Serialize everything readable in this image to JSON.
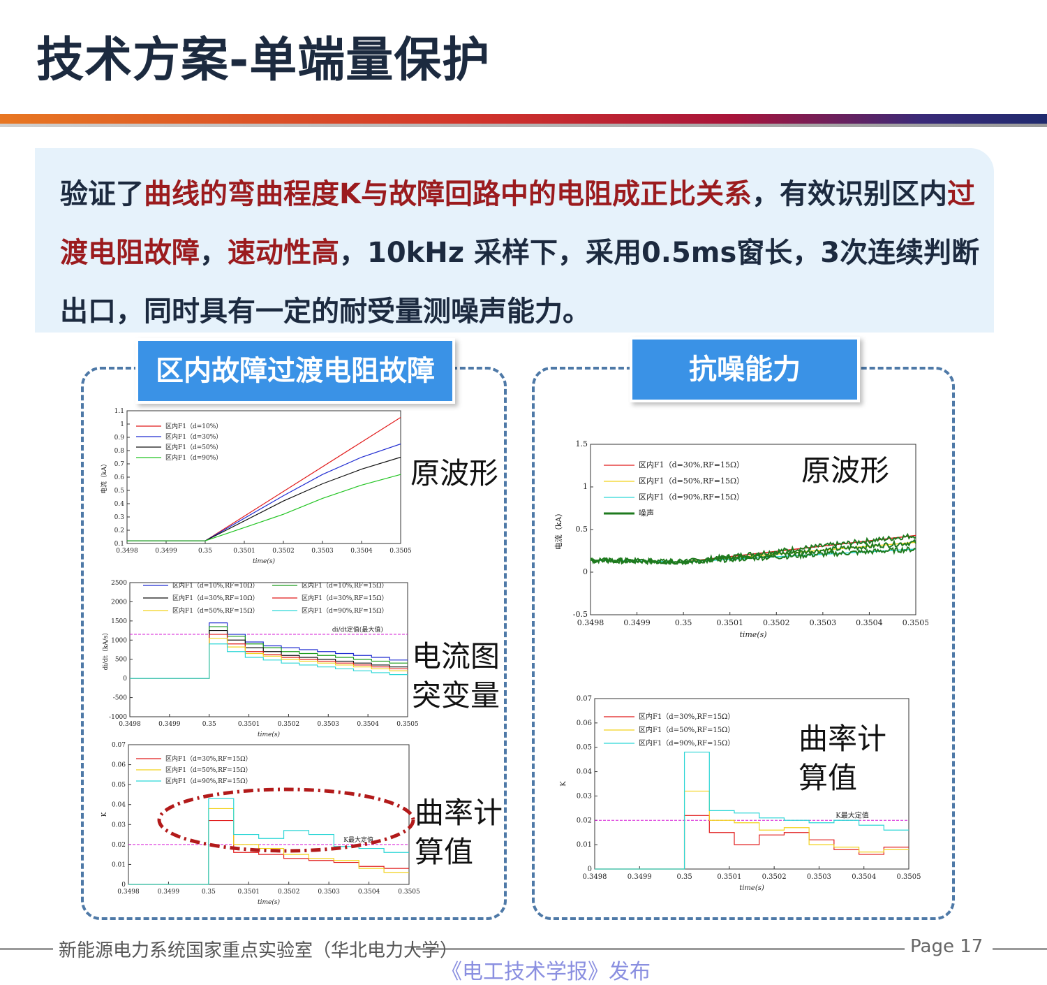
{
  "title": "技术方案-单端量保护",
  "summary": {
    "p1": "验证了",
    "p2": "曲线的弯曲程度K与故障回路中的电阻成正比关系",
    "p3": "，有效识别区内",
    "p4": "过渡电阻故障",
    "p5": "，",
    "p6": "速动性高",
    "p7": "，10kHz  采样下，采用0.5ms窗长，3次连续判断出口，同时具有一定的耐受量测噪声能力。"
  },
  "left_panel": {
    "label": "区内故障过渡电阻故障",
    "side1": "原波形",
    "side2a": "电流图",
    "side2b": "突变量",
    "side3a": "曲率计",
    "side3b": "算值"
  },
  "right_panel": {
    "label": "抗噪能力",
    "side1": "原波形",
    "side2a": "曲率计",
    "side2b": "算值"
  },
  "footer": {
    "org": "新能源电力系统国家重点实验室（华北电力大学）",
    "page": "Page 17",
    "publisher": "《电工技术学报》发布"
  },
  "colors": {
    "accent_red": "#9b1b1e",
    "panel_blue": "#3a92e6",
    "dashed_border": "#4e79a7"
  },
  "chart_data": [
    {
      "type": "line",
      "xlabel": "time(s)",
      "ylabel": "电流（kA）",
      "xlim": [
        0.3498,
        0.3505
      ],
      "ylim": [
        0.1,
        1.1
      ],
      "xticks": [
        "0.3498",
        "0.3499",
        "0.35",
        "0.3501",
        "0.3502",
        "0.3503",
        "0.3504",
        "0.3505"
      ],
      "yticks": [
        "0.1",
        "0.2",
        "0.3",
        "0.4",
        "0.5",
        "0.6",
        "0.7",
        "0.8",
        "0.9",
        "1",
        "1.1"
      ],
      "series": [
        {
          "name": "区内F1（d=10%）",
          "color": "#e11b1b",
          "x": [
            0.3498,
            0.35,
            0.3505
          ],
          "y": [
            0.12,
            0.12,
            1.05
          ]
        },
        {
          "name": "区内F1（d=30%）",
          "color": "#1f2bd1",
          "x": [
            0.3498,
            0.35,
            0.3502,
            0.3503,
            0.3504,
            0.3505
          ],
          "y": [
            0.12,
            0.12,
            0.46,
            0.62,
            0.75,
            0.85
          ]
        },
        {
          "name": "区内F1（d=50%）",
          "color": "#111111",
          "x": [
            0.3498,
            0.35,
            0.3502,
            0.3503,
            0.3504,
            0.3505
          ],
          "y": [
            0.12,
            0.12,
            0.42,
            0.55,
            0.66,
            0.75
          ]
        },
        {
          "name": "区内F1（d=90%）",
          "color": "#22c422",
          "x": [
            0.3498,
            0.35,
            0.3502,
            0.3503,
            0.3504,
            0.3505
          ],
          "y": [
            0.12,
            0.12,
            0.32,
            0.44,
            0.54,
            0.62
          ]
        }
      ]
    },
    {
      "type": "line",
      "xlabel": "time(s)",
      "ylabel": "di/dt（kA/s）",
      "xlim": [
        0.3498,
        0.3505
      ],
      "ylim": [
        -1000,
        2500
      ],
      "xticks": [
        "0.3498",
        "0.3499",
        "0.35",
        "0.3501",
        "0.3502",
        "0.3503",
        "0.3504",
        "0.3505"
      ],
      "yticks": [
        "-1000",
        "-500",
        "0",
        "500",
        "1000",
        "1500",
        "2000",
        "2500"
      ],
      "threshold": {
        "label": "di/dt定值(最大值)",
        "value": 1150,
        "color": "#d61ad6"
      },
      "series": [
        {
          "name": "区内F1（d=10%,RF=10Ω）",
          "color": "#1f2bd1",
          "y": [
            1450,
            1150,
            950,
            850,
            800,
            750,
            700,
            650,
            600,
            550,
            480
          ]
        },
        {
          "name": "区内F1（d=10%,RF=15Ω）",
          "color": "#1a9a1a",
          "y": [
            1350,
            1100,
            900,
            800,
            700,
            650,
            600,
            550,
            500,
            450,
            400
          ]
        },
        {
          "name": "区内F1（d=30%,RF=10Ω）",
          "color": "#111111",
          "y": [
            1250,
            1000,
            800,
            700,
            600,
            550,
            500,
            450,
            400,
            350,
            300
          ]
        },
        {
          "name": "区内F1（d=30%,RF=15Ω）",
          "color": "#e11b1b",
          "y": [
            1150,
            900,
            700,
            620,
            550,
            500,
            450,
            400,
            350,
            300,
            250
          ]
        },
        {
          "name": "区内F1（d=50%,RF=15Ω）",
          "color": "#f2d21b",
          "y": [
            1050,
            820,
            650,
            580,
            500,
            450,
            400,
            350,
            300,
            250,
            200
          ]
        },
        {
          "name": "区内F1（d=90%,RF=15Ω）",
          "color": "#2bd6d6",
          "y": [
            900,
            700,
            550,
            480,
            400,
            350,
            300,
            250,
            200,
            150,
            100
          ]
        }
      ]
    },
    {
      "type": "line",
      "xlabel": "time(s)",
      "ylabel": "K",
      "xlim": [
        0.3498,
        0.3505
      ],
      "ylim": [
        0,
        0.07
      ],
      "xticks": [
        "0.3498",
        "0.3499",
        "0.35",
        "0.3501",
        "0.3502",
        "0.3503",
        "0.3504",
        "0.3505"
      ],
      "yticks": [
        "0",
        "0.01",
        "0.02",
        "0.03",
        "0.04",
        "0.05",
        "0.06",
        "0.07"
      ],
      "threshold": {
        "label": "K最大定值",
        "value": 0.02,
        "color": "#d61ad6"
      },
      "series": [
        {
          "name": "区内F1（d=30%,RF=15Ω）",
          "color": "#e11b1b",
          "y": [
            0.032,
            0.016,
            0.015,
            0.013,
            0.012,
            0.011,
            0.009,
            0.008
          ]
        },
        {
          "name": "区内F1（d=50%,RF=15Ω）",
          "color": "#f2d21b",
          "y": [
            0.038,
            0.02,
            0.018,
            0.015,
            0.013,
            0.012,
            0.008,
            0.006
          ]
        },
        {
          "name": "区内F1（d=90%,RF=15Ω）",
          "color": "#2bd6d6",
          "y": [
            0.043,
            0.025,
            0.023,
            0.027,
            0.025,
            0.019,
            0.018,
            0.016
          ]
        }
      ]
    },
    {
      "type": "line",
      "xlabel": "time(s)",
      "ylabel": "电流（kA）",
      "xlim": [
        0.3498,
        0.3505
      ],
      "ylim": [
        -0.5,
        1.5
      ],
      "xticks": [
        "0.3498",
        "0.3499",
        "0.35",
        "0.3501",
        "0.3502",
        "0.3503",
        "0.3504",
        "0.3505"
      ],
      "yticks": [
        "-0.5",
        "0",
        "0.5",
        "1",
        "1.5"
      ],
      "series": [
        {
          "name": "区内F1（d=30%,RF=15Ω）",
          "color": "#e11b1b",
          "y": [
            0.14,
            0.12,
            0.43
          ]
        },
        {
          "name": "区内F1（d=50%,RF=15Ω）",
          "color": "#f2d21b",
          "y": [
            0.14,
            0.12,
            0.35
          ]
        },
        {
          "name": "区内F1（d=90%,RF=15Ω）",
          "color": "#2bd6d6",
          "y": [
            0.14,
            0.12,
            0.27
          ]
        },
        {
          "name": "噪声",
          "color": "#1e7a1e"
        }
      ]
    },
    {
      "type": "line",
      "xlabel": "time(s)",
      "ylabel": "K",
      "xlim": [
        0.3498,
        0.3505
      ],
      "ylim": [
        0,
        0.07
      ],
      "xticks": [
        "0.3498",
        "0.3499",
        "0.35",
        "0.3501",
        "0.3502",
        "0.3503",
        "0.3504",
        "0.3505"
      ],
      "yticks": [
        "0",
        "0.01",
        "0.02",
        "0.03",
        "0.04",
        "0.05",
        "0.06",
        "0.07"
      ],
      "threshold": {
        "label": "K最大定值",
        "value": 0.02,
        "color": "#d61ad6"
      },
      "series": [
        {
          "name": "区内F1（d=30%,RF=15Ω）",
          "color": "#e11b1b",
          "y": [
            0.022,
            0.015,
            0.01,
            0.014,
            0.015,
            0.012,
            0.008,
            0.006,
            0.009
          ]
        },
        {
          "name": "区内F1（d=50%,RF=15Ω）",
          "color": "#f2d21b",
          "y": [
            0.032,
            0.02,
            0.019,
            0.016,
            0.017,
            0.01,
            0.009,
            0.007,
            0.008
          ]
        },
        {
          "name": "区内F1（d=90%,RF=15Ω）",
          "color": "#2bd6d6",
          "y": [
            0.048,
            0.024,
            0.023,
            0.021,
            0.02,
            0.019,
            0.02,
            0.018,
            0.016
          ]
        }
      ]
    }
  ]
}
